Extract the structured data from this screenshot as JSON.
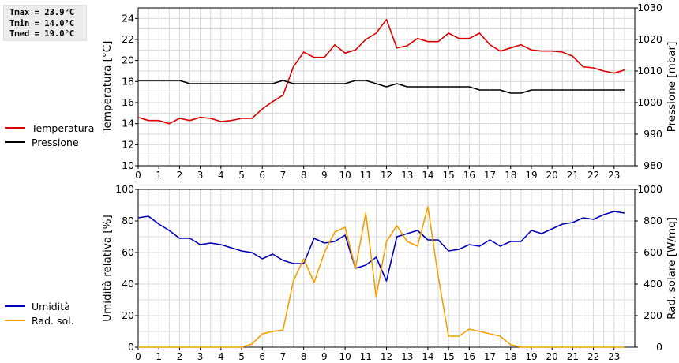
{
  "stats": {
    "tmax": "Tmax = 23.9°C",
    "tmin": "Tmin = 14.0°C",
    "tmed": "Tmed = 19.0°C"
  },
  "colors": {
    "temperature": "#dd0000",
    "pressure": "#000000",
    "humidity": "#0000bb",
    "radiation": "#f5a000",
    "grid": "#d8d8d8"
  },
  "chart_data": [
    {
      "type": "line",
      "x_ticks": [
        "0",
        "1",
        "2",
        "3",
        "4",
        "5",
        "6",
        "7",
        "8",
        "9",
        "10",
        "11",
        "12",
        "13",
        "14",
        "15",
        "16",
        "17",
        "18",
        "19",
        "20",
        "21",
        "22",
        "23"
      ],
      "xlim": [
        0,
        24
      ],
      "ylabel": "Temperatura [°C]",
      "ylabel_right": "Pressione [mbar]",
      "ylim": [
        10,
        25
      ],
      "ylim_right": [
        980,
        1030
      ],
      "y_ticks": [
        "10",
        "12",
        "14",
        "16",
        "18",
        "20",
        "22",
        "24"
      ],
      "y_ticks_right": [
        "980",
        "990",
        "1000",
        "1010",
        "1020",
        "1030"
      ],
      "grid": true,
      "legend_position": "left",
      "series": [
        {
          "name": "Temperatura",
          "axis": "left",
          "x": [
            0,
            0.5,
            1,
            1.5,
            2,
            2.5,
            3,
            3.5,
            4,
            4.5,
            5,
            5.5,
            6,
            6.5,
            7,
            7.5,
            8,
            8.5,
            9,
            9.5,
            10,
            10.5,
            11,
            11.5,
            12,
            12.5,
            13,
            13.5,
            14,
            14.5,
            15,
            15.5,
            16,
            16.5,
            17,
            17.5,
            18,
            18.5,
            19,
            19.5,
            20,
            20.5,
            21,
            21.5,
            22,
            22.5,
            23,
            23.5
          ],
          "values": [
            14.6,
            14.3,
            14.3,
            14.0,
            14.5,
            14.3,
            14.6,
            14.5,
            14.2,
            14.3,
            14.5,
            14.5,
            15.4,
            16.1,
            16.7,
            19.4,
            20.8,
            20.3,
            20.3,
            21.5,
            20.7,
            21.0,
            22.0,
            22.6,
            23.9,
            21.2,
            21.4,
            22.1,
            21.8,
            21.8,
            22.6,
            22.1,
            22.1,
            22.6,
            21.5,
            20.9,
            21.2,
            21.5,
            21.0,
            20.9,
            20.9,
            20.8,
            20.4,
            19.4,
            19.3,
            19.0,
            18.8,
            19.1
          ]
        },
        {
          "name": "Pressione",
          "axis": "right",
          "x": [
            0,
            0.5,
            1,
            1.5,
            2,
            2.5,
            3,
            3.5,
            4,
            4.5,
            5,
            5.5,
            6,
            6.5,
            7,
            7.5,
            8,
            8.5,
            9,
            9.5,
            10,
            10.5,
            11,
            11.5,
            12,
            12.5,
            13,
            13.5,
            14,
            14.5,
            15,
            15.5,
            16,
            16.5,
            17,
            17.5,
            18,
            18.5,
            19,
            19.5,
            20,
            20.5,
            21,
            21.5,
            22,
            22.5,
            23,
            23.5
          ],
          "values": [
            1007,
            1007,
            1007,
            1007,
            1007,
            1006,
            1006,
            1006,
            1006,
            1006,
            1006,
            1006,
            1006,
            1006,
            1007,
            1006,
            1006,
            1006,
            1006,
            1006,
            1006,
            1007,
            1007,
            1006,
            1005,
            1006,
            1005,
            1005,
            1005,
            1005,
            1005,
            1005,
            1005,
            1004,
            1004,
            1004,
            1003,
            1003,
            1004,
            1004,
            1004,
            1004,
            1004,
            1004,
            1004,
            1004,
            1004,
            1004
          ]
        }
      ]
    },
    {
      "type": "line",
      "x_ticks": [
        "0",
        "1",
        "2",
        "3",
        "4",
        "5",
        "6",
        "7",
        "8",
        "9",
        "10",
        "11",
        "12",
        "13",
        "14",
        "15",
        "16",
        "17",
        "18",
        "19",
        "20",
        "21",
        "22",
        "23"
      ],
      "xlim": [
        0,
        24
      ],
      "ylabel": "Umidità relativa [%]",
      "ylabel_right": "Rad. solare [W/mq]",
      "ylim": [
        0,
        100
      ],
      "ylim_right": [
        0,
        1000
      ],
      "y_ticks": [
        "0",
        "20",
        "40",
        "60",
        "80",
        "100"
      ],
      "y_ticks_right": [
        "0",
        "200",
        "400",
        "600",
        "800",
        "1000"
      ],
      "grid": true,
      "legend_position": "left",
      "series": [
        {
          "name": "Umidità",
          "axis": "left",
          "x": [
            0,
            0.5,
            1,
            1.5,
            2,
            2.5,
            3,
            3.5,
            4,
            4.5,
            5,
            5.5,
            6,
            6.5,
            7,
            7.5,
            8,
            8.5,
            9,
            9.5,
            10,
            10.5,
            11,
            11.5,
            12,
            12.5,
            13,
            13.5,
            14,
            14.5,
            15,
            15.5,
            16,
            16.5,
            17,
            17.5,
            18,
            18.5,
            19,
            19.5,
            20,
            20.5,
            21,
            21.5,
            22,
            22.5,
            23,
            23.5
          ],
          "values": [
            82,
            83,
            78,
            74,
            69,
            69,
            65,
            66,
            65,
            63,
            61,
            60,
            56,
            59,
            55,
            53,
            53,
            69,
            66,
            67,
            71,
            50,
            52,
            57,
            42,
            70,
            72,
            74,
            68,
            68,
            61,
            62,
            65,
            64,
            68,
            64,
            67,
            67,
            74,
            72,
            75,
            78,
            79,
            82,
            81,
            84,
            86,
            85
          ]
        },
        {
          "name": "Rad. sol.",
          "axis": "right",
          "x": [
            0,
            0.5,
            1,
            1.5,
            2,
            2.5,
            3,
            3.5,
            4,
            4.5,
            5,
            5.5,
            6,
            6.5,
            7,
            7.5,
            8,
            8.5,
            9,
            9.5,
            10,
            10.5,
            11,
            11.5,
            12,
            12.5,
            13,
            13.5,
            14,
            14.5,
            15,
            15.5,
            16,
            16.5,
            17,
            17.5,
            18,
            18.5,
            19,
            19.5,
            20,
            20.5,
            21,
            21.5,
            22,
            22.5,
            23,
            23.5
          ],
          "values": [
            0,
            0,
            0,
            0,
            0,
            0,
            0,
            0,
            0,
            0,
            0,
            20,
            85,
            100,
            110,
            420,
            560,
            410,
            600,
            730,
            760,
            500,
            850,
            320,
            670,
            770,
            670,
            640,
            890,
            450,
            70,
            70,
            115,
            100,
            85,
            70,
            15,
            0,
            0,
            0,
            0,
            0,
            0,
            0,
            0,
            0,
            0,
            0
          ]
        }
      ]
    }
  ]
}
